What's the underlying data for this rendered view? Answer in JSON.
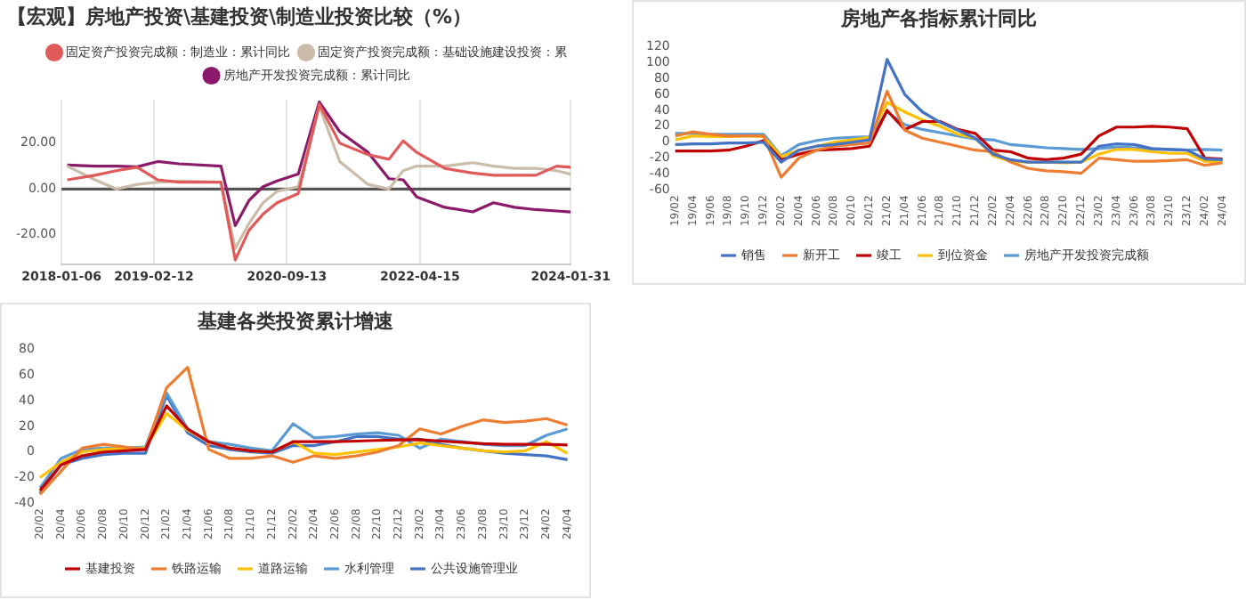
{
  "chart_data": [
    {
      "type": "line",
      "title": "【宏观】房地产投资\\基建投资\\制造业投资比较（%）",
      "x": [
        "2018-01-31",
        "2018-06",
        "2018-09",
        "2018-12",
        "2019-03",
        "2019-06",
        "2019-12",
        "2020-02",
        "2020-04",
        "2020-06",
        "2020-08",
        "2020-11",
        "2021-02",
        "2021-05",
        "2021-09",
        "2021-12",
        "2022-02",
        "2022-04",
        "2022-08",
        "2022-12",
        "2023-03",
        "2023-06",
        "2023-09",
        "2023-12",
        "2024-01-31"
      ],
      "series": [
        {
          "name": "固定资产投资完成额：制造业：累计同比",
          "color": "#e05a5a",
          "values": [
            4,
            6,
            8,
            9.5,
            4,
            3,
            3,
            -31,
            -18,
            -11,
            -6,
            -2,
            37,
            20,
            15,
            13,
            21,
            16,
            9,
            7,
            6,
            6,
            6,
            10,
            9.5
          ]
        },
        {
          "name": "固定资产投资完成额：基础设施建设投资：累",
          "color": "#cbbcaa",
          "values": [
            10,
            4,
            0,
            2,
            3,
            3.5,
            3,
            -26,
            -15,
            -6,
            -1,
            1,
            36,
            12,
            2,
            0,
            8,
            10,
            10,
            11.5,
            10,
            9,
            9,
            8,
            6.5
          ]
        },
        {
          "name": "房地产开发投资完成额：累计同比",
          "color": "#8b1a6b",
          "values": [
            10.5,
            10,
            10,
            9.7,
            12,
            11,
            10,
            -16,
            -5,
            1,
            3.5,
            6.5,
            38,
            25,
            16,
            4.5,
            4,
            -3.5,
            -8,
            -10,
            -6,
            -8,
            -9,
            -9.6,
            -10
          ]
        }
      ],
      "xlim": [
        "2018-01-06",
        "2024-01-31"
      ],
      "xticks": [
        "2018-01-06",
        "2019-02-12",
        "2020-09-13",
        "2022-04-15",
        "2024-01-31"
      ],
      "ylim": [
        -33,
        39
      ],
      "yticks": [
        {
          "value": -20,
          "label": "-20.00"
        },
        {
          "value": 0,
          "label": "0.00"
        },
        {
          "value": 20,
          "label": "20.00"
        }
      ],
      "ref_lines": [
        {
          "axis": "y",
          "value": 0,
          "color": "#555555"
        }
      ],
      "grid": "x",
      "legend": "top",
      "marker": "none",
      "line_style": "solid"
    },
    {
      "type": "line",
      "title": "房地产各指标累计同比",
      "categories": [
        "19/02",
        "19/04",
        "19/06",
        "19/08",
        "19/10",
        "19/12",
        "20/02",
        "20/04",
        "20/06",
        "20/08",
        "20/10",
        "20/12",
        "21/02",
        "21/04",
        "21/06",
        "21/08",
        "21/10",
        "21/12",
        "22/02",
        "22/04",
        "22/06",
        "22/08",
        "22/10",
        "22/12",
        "23/02",
        "23/04",
        "23/06",
        "23/08",
        "23/10",
        "23/12",
        "24/02",
        "24/04"
      ],
      "series": [
        {
          "name": "销售",
          "color": "#4472c4",
          "values": [
            -3,
            -2,
            -2,
            -1,
            -1,
            0,
            -25,
            -10,
            -5,
            -3,
            0,
            3,
            104,
            60,
            38,
            25,
            15,
            5,
            -15,
            -22,
            -25,
            -25,
            -25,
            -25,
            -5,
            -2,
            -3,
            -8,
            -9,
            -10,
            -21,
            -22
          ]
        },
        {
          "name": "新开工",
          "color": "#ed7d31",
          "values": [
            8,
            13,
            10,
            8,
            8,
            8,
            -44,
            -20,
            -10,
            -5,
            -3,
            -1,
            64,
            15,
            5,
            0,
            -5,
            -10,
            -12,
            -25,
            -33,
            -36,
            -37,
            -39,
            -20,
            -22,
            -24,
            -24,
            -23,
            -22,
            -29,
            -26
          ]
        },
        {
          "name": "竣工",
          "color": "#c00000",
          "values": [
            -11,
            -11,
            -11,
            -10,
            -5,
            2,
            -22,
            -15,
            -10,
            -9,
            -8,
            -5,
            40,
            16,
            26,
            26,
            16,
            11,
            -10,
            -12,
            -20,
            -22,
            -20,
            -15,
            8,
            19,
            19,
            20,
            19,
            17,
            -20,
            -21
          ]
        },
        {
          "name": "到位资金",
          "color": "#ffc000",
          "values": [
            3,
            8,
            7,
            7,
            8,
            7,
            -18,
            -10,
            -5,
            0,
            3,
            6,
            50,
            38,
            28,
            20,
            10,
            5,
            -17,
            -24,
            -25,
            -25,
            -26,
            -25,
            -15,
            -9,
            -9,
            -12,
            -14,
            -14,
            -24,
            -25
          ]
        },
        {
          "name": "房地产开发投资完成额",
          "color": "#5b9bd5",
          "values": [
            11,
            11,
            10,
            10,
            10,
            10,
            -17,
            -3,
            2,
            5,
            6,
            7,
            38,
            22,
            16,
            12,
            8,
            4,
            3,
            -3,
            -5,
            -7,
            -8,
            -9,
            -8,
            -6,
            -7,
            -9,
            -9,
            -10,
            -9,
            -10
          ]
        }
      ],
      "ylim": [
        -60,
        120
      ],
      "yticks": [
        -60,
        -40,
        -20,
        0,
        20,
        40,
        60,
        80,
        100,
        120
      ],
      "grid": false,
      "legend": "bottom",
      "marker": "none",
      "line_style": "solid"
    },
    {
      "type": "line",
      "title": "基建各类投资累计增速",
      "categories": [
        "20/02",
        "20/04",
        "20/06",
        "20/08",
        "20/10",
        "20/12",
        "21/02",
        "21/04",
        "21/06",
        "21/08",
        "21/10",
        "21/12",
        "22/02",
        "22/04",
        "22/06",
        "22/08",
        "22/10",
        "22/12",
        "23/02",
        "23/04",
        "23/06",
        "23/08",
        "23/10",
        "23/12",
        "24/02",
        "24/04"
      ],
      "series": [
        {
          "name": "基建投资",
          "color": "#c00000",
          "values": [
            -30,
            -10,
            -3,
            0,
            1,
            2,
            36,
            18,
            8,
            3,
            1,
            0,
            8,
            8,
            8,
            8.5,
            9,
            9.5,
            9.6,
            8.5,
            7.5,
            6.5,
            6,
            6,
            6,
            5.5
          ]
        },
        {
          "name": "铁路运输",
          "color": "#ed7d31",
          "values": [
            -33,
            -15,
            3,
            6,
            4,
            2,
            50,
            66,
            2,
            -5,
            -5,
            -3,
            -8,
            -3,
            -5,
            -3,
            0,
            5,
            18,
            14,
            20,
            25,
            23,
            24,
            26,
            21
          ]
        },
        {
          "name": "道路运输",
          "color": "#ffc000",
          "values": [
            -20,
            -8,
            0,
            2,
            3,
            3,
            30,
            17,
            8,
            3,
            1,
            0,
            8,
            -1,
            -2,
            0,
            2,
            4,
            7,
            5,
            3,
            1,
            0,
            1,
            8,
            -1
          ]
        },
        {
          "name": "水利管理",
          "color": "#5b9bd5",
          "values": [
            -28,
            -5,
            2,
            3,
            3,
            4,
            46,
            18,
            8,
            6,
            3,
            1,
            22,
            11,
            12,
            14,
            15,
            13,
            3,
            10,
            8,
            6,
            5,
            5,
            13,
            18
          ]
        },
        {
          "name": "公共设施管理业",
          "color": "#4472c4",
          "values": [
            -32,
            -10,
            -5,
            -2,
            -1,
            -1,
            44,
            15,
            5,
            2,
            0,
            -1,
            5,
            5,
            8,
            12,
            12,
            10,
            10,
            6,
            3,
            1,
            -1,
            -2,
            -3,
            -6
          ]
        }
      ],
      "ylim": [
        -40,
        80
      ],
      "yticks": [
        -40,
        -20,
        0,
        20,
        40,
        60,
        80
      ],
      "grid": false,
      "legend": "bottom",
      "marker": "none",
      "line_style": "solid"
    }
  ]
}
